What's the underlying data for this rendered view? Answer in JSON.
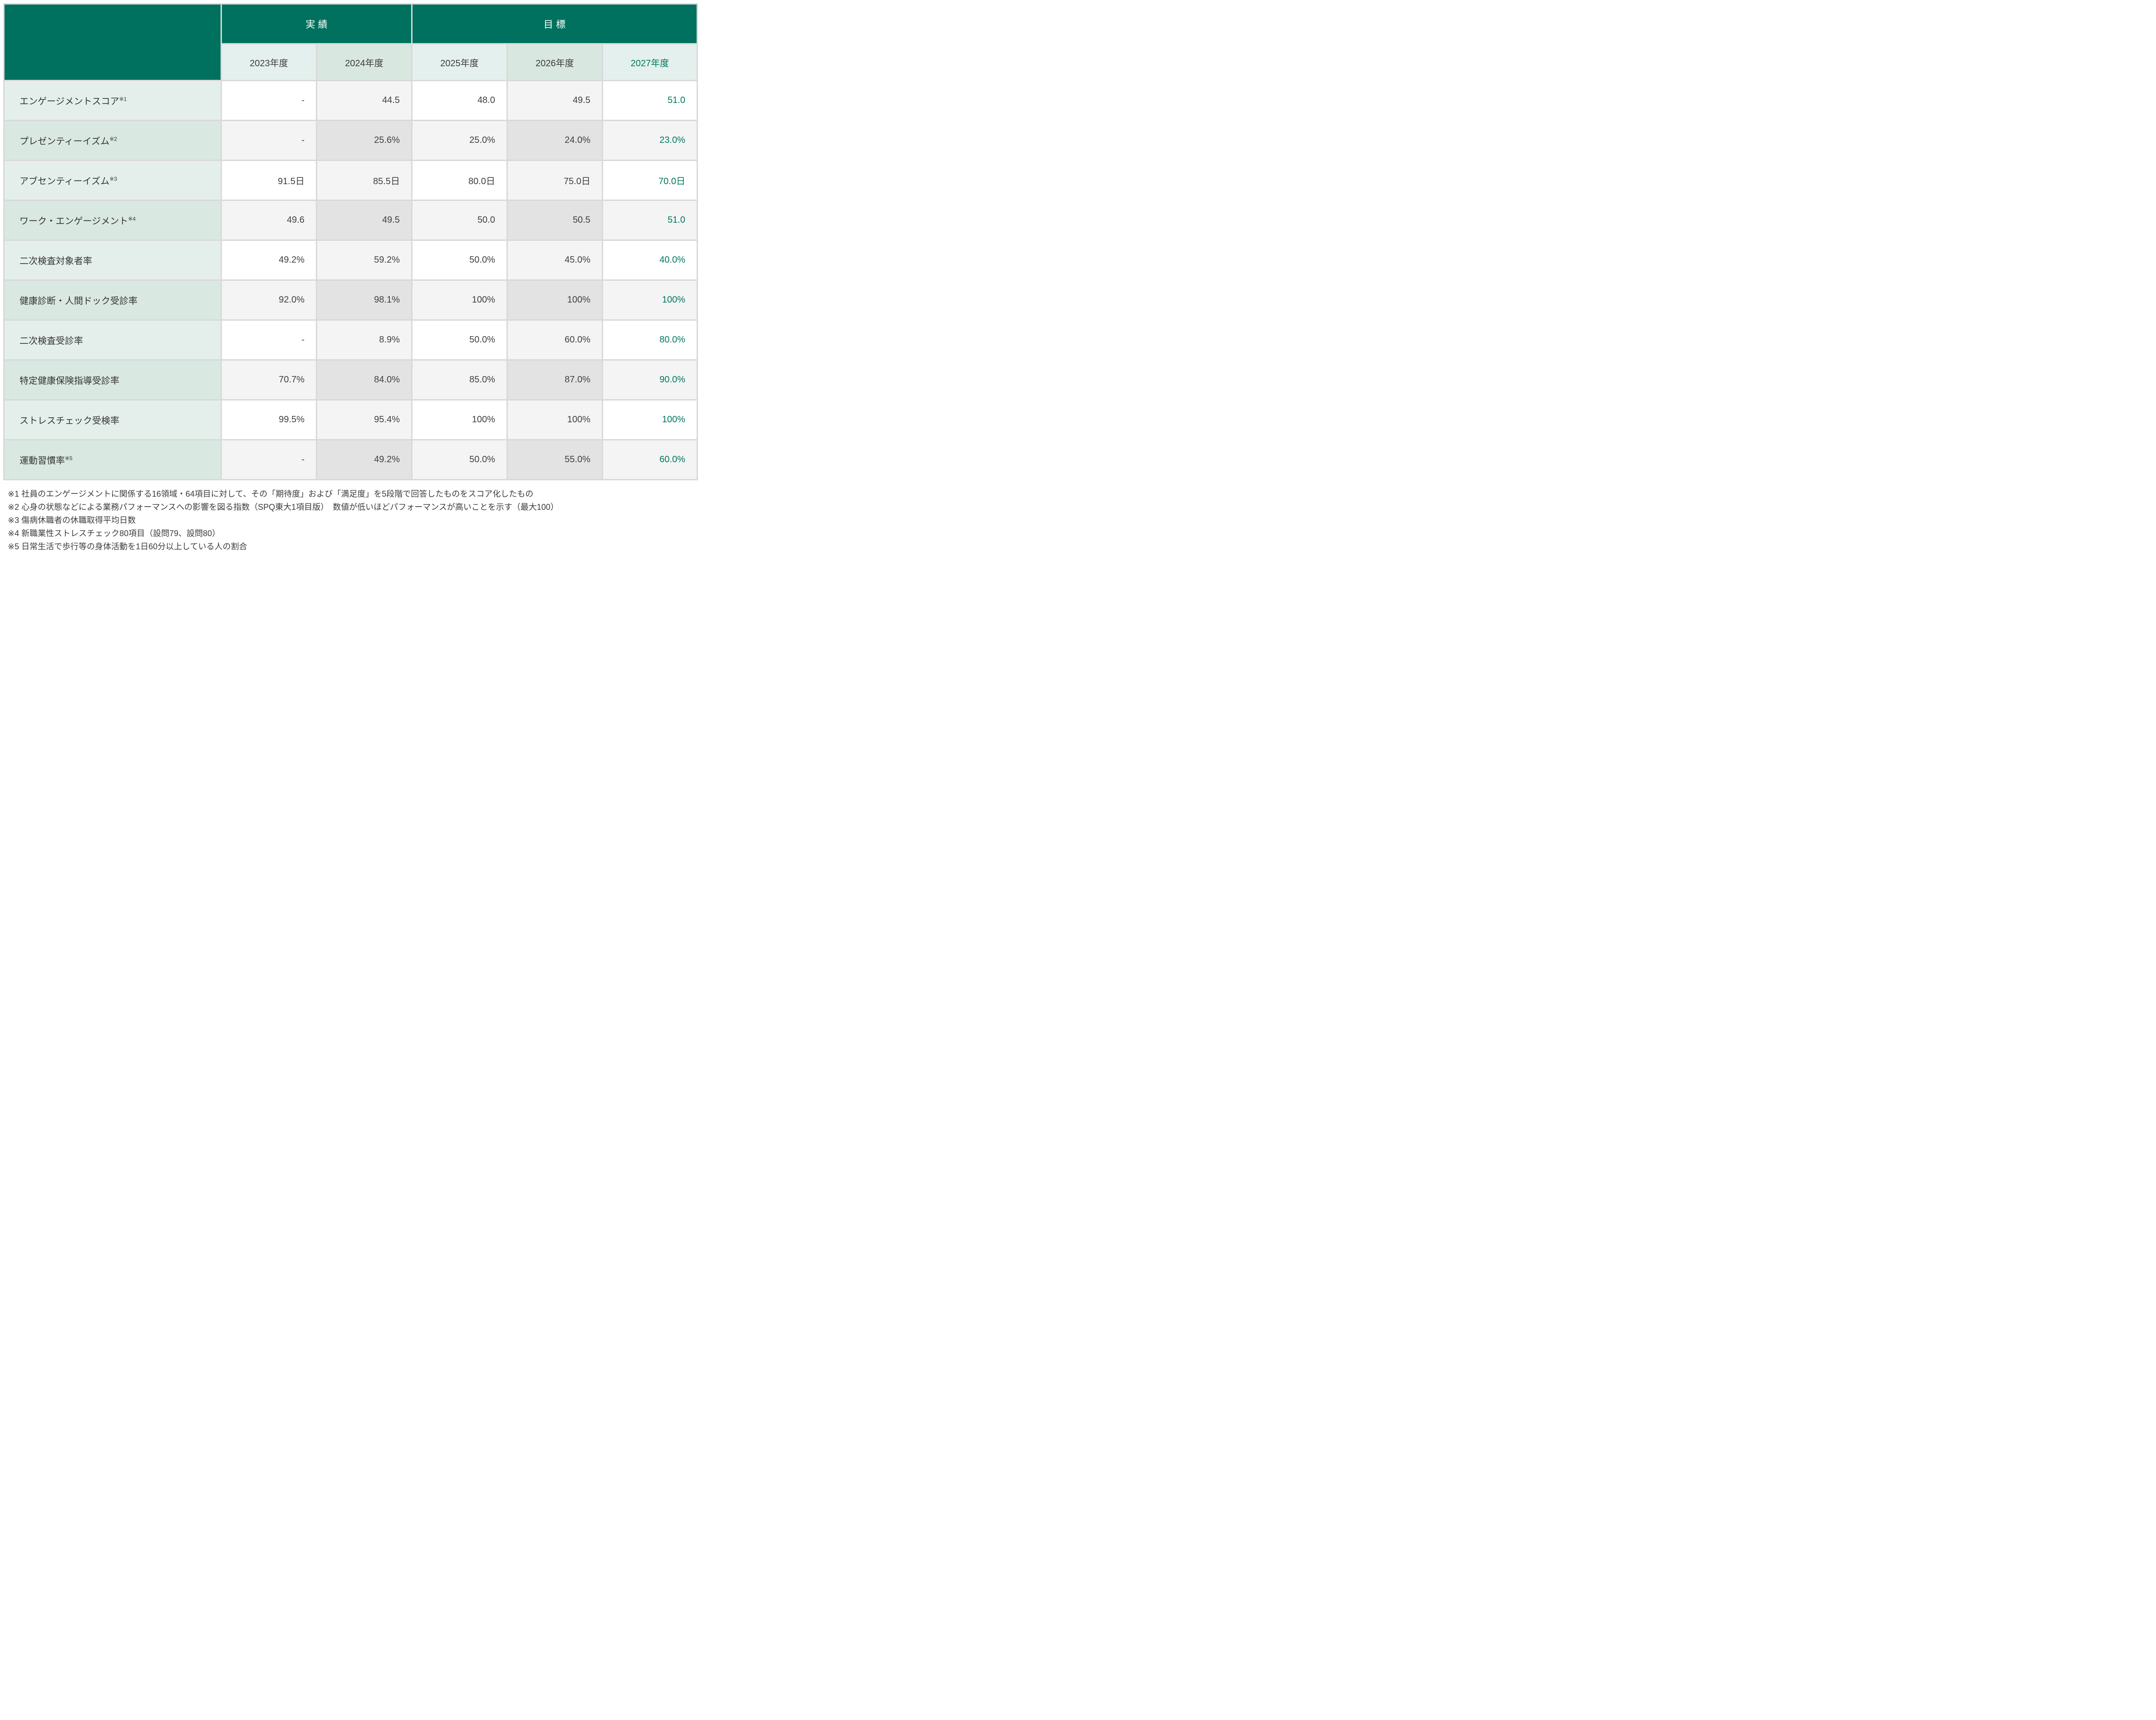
{
  "table": {
    "col_groups": [
      {
        "label": "実績",
        "span": 2
      },
      {
        "label": "目標",
        "span": 3
      }
    ],
    "years": [
      "2023年度",
      "2024年度",
      "2025年度",
      "2026年度",
      "2027年度"
    ],
    "rows": [
      {
        "label": "エンゲージメントスコア",
        "sup": "※1",
        "values": [
          "-",
          "44.5",
          "48.0",
          "49.5",
          "51.0"
        ]
      },
      {
        "label": "プレゼンティーイズム",
        "sup": "※2",
        "values": [
          "-",
          "25.6%",
          "25.0%",
          "24.0%",
          "23.0%"
        ]
      },
      {
        "label": "アブセンティーイズム",
        "sup": "※3",
        "values": [
          "91.5日",
          "85.5日",
          "80.0日",
          "75.0日",
          "70.0日"
        ]
      },
      {
        "label": "ワーク・エンゲージメント",
        "sup": "※4",
        "values": [
          "49.6",
          "49.5",
          "50.0",
          "50.5",
          "51.0"
        ]
      },
      {
        "label": "二次検査対象者率",
        "sup": "",
        "values": [
          "49.2%",
          "59.2%",
          "50.0%",
          "45.0%",
          "40.0%"
        ]
      },
      {
        "label": "健康診断・人間ドック受診率",
        "sup": "",
        "values": [
          "92.0%",
          "98.1%",
          "100%",
          "100%",
          "100%"
        ]
      },
      {
        "label": "二次検査受診率",
        "sup": "",
        "values": [
          "-",
          "8.9%",
          "50.0%",
          "60.0%",
          "80.0%"
        ]
      },
      {
        "label": "特定健康保険指導受診率",
        "sup": "",
        "values": [
          "70.7%",
          "84.0%",
          "85.0%",
          "87.0%",
          "90.0%"
        ]
      },
      {
        "label": "ストレスチェック受検率",
        "sup": "",
        "values": [
          "99.5%",
          "95.4%",
          "100%",
          "100%",
          "100%"
        ]
      },
      {
        "label": "運動習慣率",
        "sup": "※5",
        "values": [
          "-",
          "49.2%",
          "50.0%",
          "55.0%",
          "60.0%"
        ]
      }
    ],
    "footnotes": [
      "※1 社員のエンゲージメントに関係する16領域・64項目に対して、その「期待度」および「満足度」を5段階で回答したものをスコア化したもの",
      "※2 心身の状態などによる業務パフォーマンスへの影響を図る指数（SPQ東大1項目版）　数値が低いほどパフォーマンスが高いことを示す（最大100）",
      "※3 傷病休職者の休職取得平均日数",
      "※4 新職業性ストレスチェック80項目（設問79、設問80）",
      "※5 日常生活で歩行等の身体活動を1日60分以上している人の割合"
    ]
  },
  "colors": {
    "header_green": "#00715E",
    "accent_text_green": "#00785E",
    "gridline": "#d9d9d9",
    "label_odd": "#e4efec",
    "label_even": "#d9e8e1",
    "year_light": "#e4f0ed",
    "year_shade": "#d9e7e1",
    "cell_white": "#ffffff",
    "cell_light_gray": "#f4f4f4",
    "cell_dark_gray": "#e3e3e3",
    "text_dark": "#3c3c3c"
  }
}
